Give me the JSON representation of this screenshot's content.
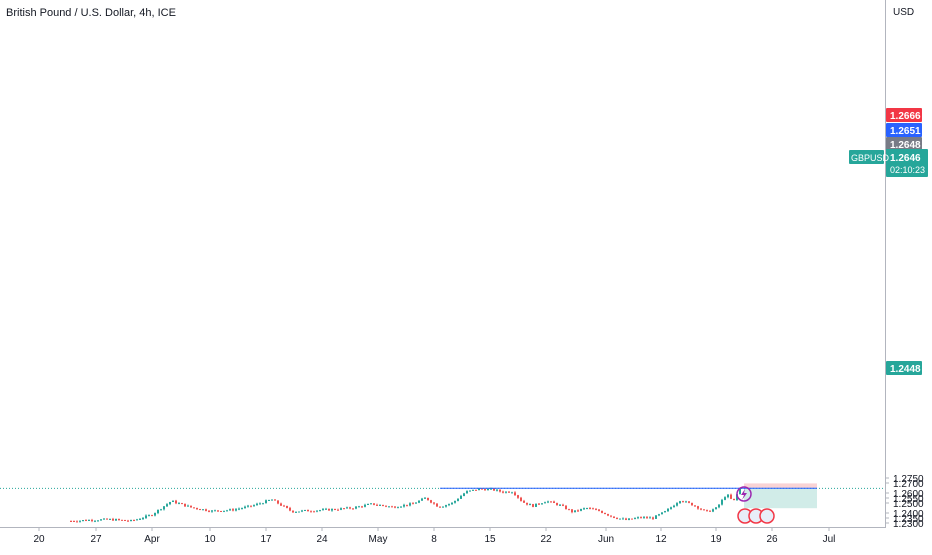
{
  "header": {
    "title": "British Pound / U.S. Dollar, 4h, ICE"
  },
  "colors": {
    "up": "#26a69a",
    "down": "#ef5350",
    "axis_line": "#b2b5be",
    "text": "#131722",
    "price_line": "#2962ff",
    "stop_zone": "#f9d3d5",
    "target_zone": "#d1ece8",
    "label_green": "#26a69a",
    "label_red": "#f23645",
    "label_blue": "#2962ff",
    "label_grey": "#787b86"
  },
  "chart_data": {
    "type": "candlestick",
    "currency_label": "USD",
    "symbol": "GBPUSD",
    "ylim": [
      1.2295,
      1.2805
    ],
    "y_ticks": [
      "1.2750",
      "1.2700",
      "1.2600",
      "1.2550",
      "1.2500",
      "1.2400",
      "1.2350",
      "1.2300"
    ],
    "x_ticks": [
      "20",
      "27",
      "Apr",
      "10",
      "17",
      "24",
      "May",
      "8",
      "15",
      "22",
      "Jun",
      "12",
      "19",
      "26",
      "Jul"
    ],
    "last_price": {
      "value": "1.2646",
      "countdown": "02:10:23"
    },
    "price_labels": [
      {
        "value": "1.2666",
        "kind": "red"
      },
      {
        "value": "1.2651",
        "kind": "blue"
      },
      {
        "value": "1.2648",
        "kind": "grey"
      },
      {
        "value": "1.2448",
        "kind": "green"
      }
    ],
    "position": {
      "entry": 1.2648,
      "stop": 1.2666,
      "target": 1.2448
    },
    "trend": [
      [
        0.0,
        1.232
      ],
      [
        0.03,
        1.233
      ],
      [
        0.06,
        1.2335
      ],
      [
        0.09,
        1.232
      ],
      [
        0.12,
        1.238
      ],
      [
        0.15,
        1.252
      ],
      [
        0.18,
        1.2455
      ],
      [
        0.21,
        1.242
      ],
      [
        0.24,
        1.243
      ],
      [
        0.27,
        1.247
      ],
      [
        0.3,
        1.2535
      ],
      [
        0.33,
        1.2415
      ],
      [
        0.36,
        1.2425
      ],
      [
        0.39,
        1.2435
      ],
      [
        0.42,
        1.245
      ],
      [
        0.45,
        1.249
      ],
      [
        0.48,
        1.246
      ],
      [
        0.51,
        1.249
      ],
      [
        0.53,
        1.255
      ],
      [
        0.55,
        1.246
      ],
      [
        0.57,
        1.25
      ],
      [
        0.59,
        1.261
      ],
      [
        0.61,
        1.264
      ],
      [
        0.63,
        1.2635
      ],
      [
        0.645,
        1.261
      ],
      [
        0.66,
        1.2615
      ],
      [
        0.675,
        1.251
      ],
      [
        0.69,
        1.247
      ],
      [
        0.71,
        1.252
      ],
      [
        0.73,
        1.248
      ],
      [
        0.75,
        1.241
      ],
      [
        0.77,
        1.245
      ],
      [
        0.79,
        1.242
      ],
      [
        0.81,
        1.236
      ],
      [
        0.83,
        1.233
      ],
      [
        0.85,
        1.2355
      ],
      [
        0.87,
        1.235
      ],
      [
        0.89,
        1.242
      ],
      [
        0.91,
        1.253
      ],
      [
        0.93,
        1.248
      ],
      [
        0.95,
        1.241
      ],
      [
        0.965,
        1.245
      ],
      [
        0.98,
        1.259
      ],
      [
        0.99,
        1.251
      ],
      [
        1.0,
        1.2648
      ]
    ]
  }
}
